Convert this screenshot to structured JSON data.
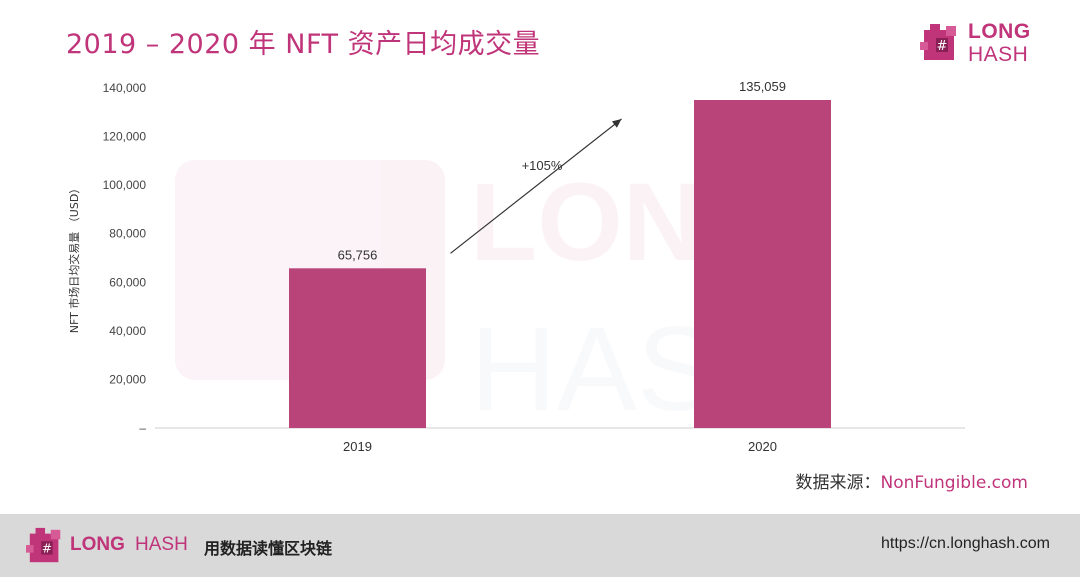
{
  "title": "2019 – 2020 年 NFT 资产日均成交量",
  "logo": {
    "word1": "LONG",
    "word2": "HASH"
  },
  "source": {
    "label": "数据来源：",
    "link": "NonFungible.com"
  },
  "footer": {
    "brand1": "LONG",
    "brand2": "HASH",
    "slogan": "用数据读懂区块链",
    "url": "https://cn.longhash.com"
  },
  "colors": {
    "accent": "#c0347a",
    "bar": "#b8447a",
    "footer_bg": "#d9d9d9"
  },
  "chart_data": {
    "type": "bar",
    "categories": [
      "2019",
      "2020"
    ],
    "values": [
      65756,
      135059
    ],
    "value_labels": [
      "65,756",
      "135,059"
    ],
    "ylabel": "NFT 市场日均交易量 （USD）",
    "ylim": [
      0,
      140000
    ],
    "yticks": [
      0,
      20000,
      40000,
      60000,
      80000,
      100000,
      120000,
      140000
    ],
    "ytick_labels": [
      "–",
      "20,000",
      "40,000",
      "60,000",
      "80,000",
      "100,000",
      "120,000",
      "140,000"
    ],
    "annotation": "+105%",
    "grid": false,
    "legend": "none"
  }
}
